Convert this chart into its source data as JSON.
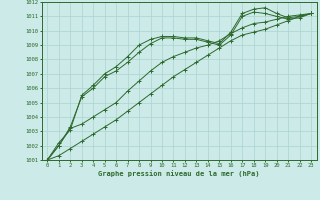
{
  "title": "Graphe pression niveau de la mer (hPa)",
  "background_color": "#cceae8",
  "grid_color": "#aad4d0",
  "line_color": "#2d6a2d",
  "xlim": [
    -0.5,
    23.5
  ],
  "ylim": [
    1001,
    1012
  ],
  "x_ticks": [
    0,
    1,
    2,
    3,
    4,
    5,
    6,
    7,
    8,
    9,
    10,
    11,
    12,
    13,
    14,
    15,
    16,
    17,
    18,
    19,
    20,
    21,
    22,
    23
  ],
  "y_ticks": [
    1001,
    1002,
    1003,
    1004,
    1005,
    1006,
    1007,
    1008,
    1009,
    1010,
    1011,
    1012
  ],
  "series": [
    [
      1001.0,
      1002.2,
      1003.1,
      1005.5,
      1006.2,
      1007.0,
      1007.5,
      1008.2,
      1009.0,
      1009.4,
      1009.6,
      1009.6,
      1009.5,
      1009.5,
      1009.3,
      1009.1,
      1009.9,
      1011.2,
      1011.5,
      1011.6,
      1011.2,
      1010.9,
      1011.0,
      1011.2
    ],
    [
      1001.0,
      1002.0,
      1003.3,
      1005.4,
      1006.0,
      1006.8,
      1007.2,
      1007.8,
      1008.5,
      1009.1,
      1009.5,
      1009.5,
      1009.4,
      1009.4,
      1009.2,
      1009.0,
      1009.7,
      1011.0,
      1011.3,
      1011.2,
      1011.0,
      1010.8,
      1010.9,
      1011.2
    ],
    [
      1001.0,
      1002.0,
      1003.2,
      1003.5,
      1004.0,
      1004.5,
      1005.0,
      1005.8,
      1006.5,
      1007.2,
      1007.8,
      1008.2,
      1008.5,
      1008.8,
      1009.0,
      1009.3,
      1009.8,
      1010.2,
      1010.5,
      1010.6,
      1010.8,
      1011.0,
      1011.1,
      1011.2
    ],
    [
      1001.0,
      1001.3,
      1001.8,
      1002.3,
      1002.8,
      1003.3,
      1003.8,
      1004.4,
      1005.0,
      1005.6,
      1006.2,
      1006.8,
      1007.3,
      1007.8,
      1008.3,
      1008.8,
      1009.3,
      1009.7,
      1009.9,
      1010.1,
      1010.4,
      1010.7,
      1011.0,
      1011.2
    ]
  ]
}
